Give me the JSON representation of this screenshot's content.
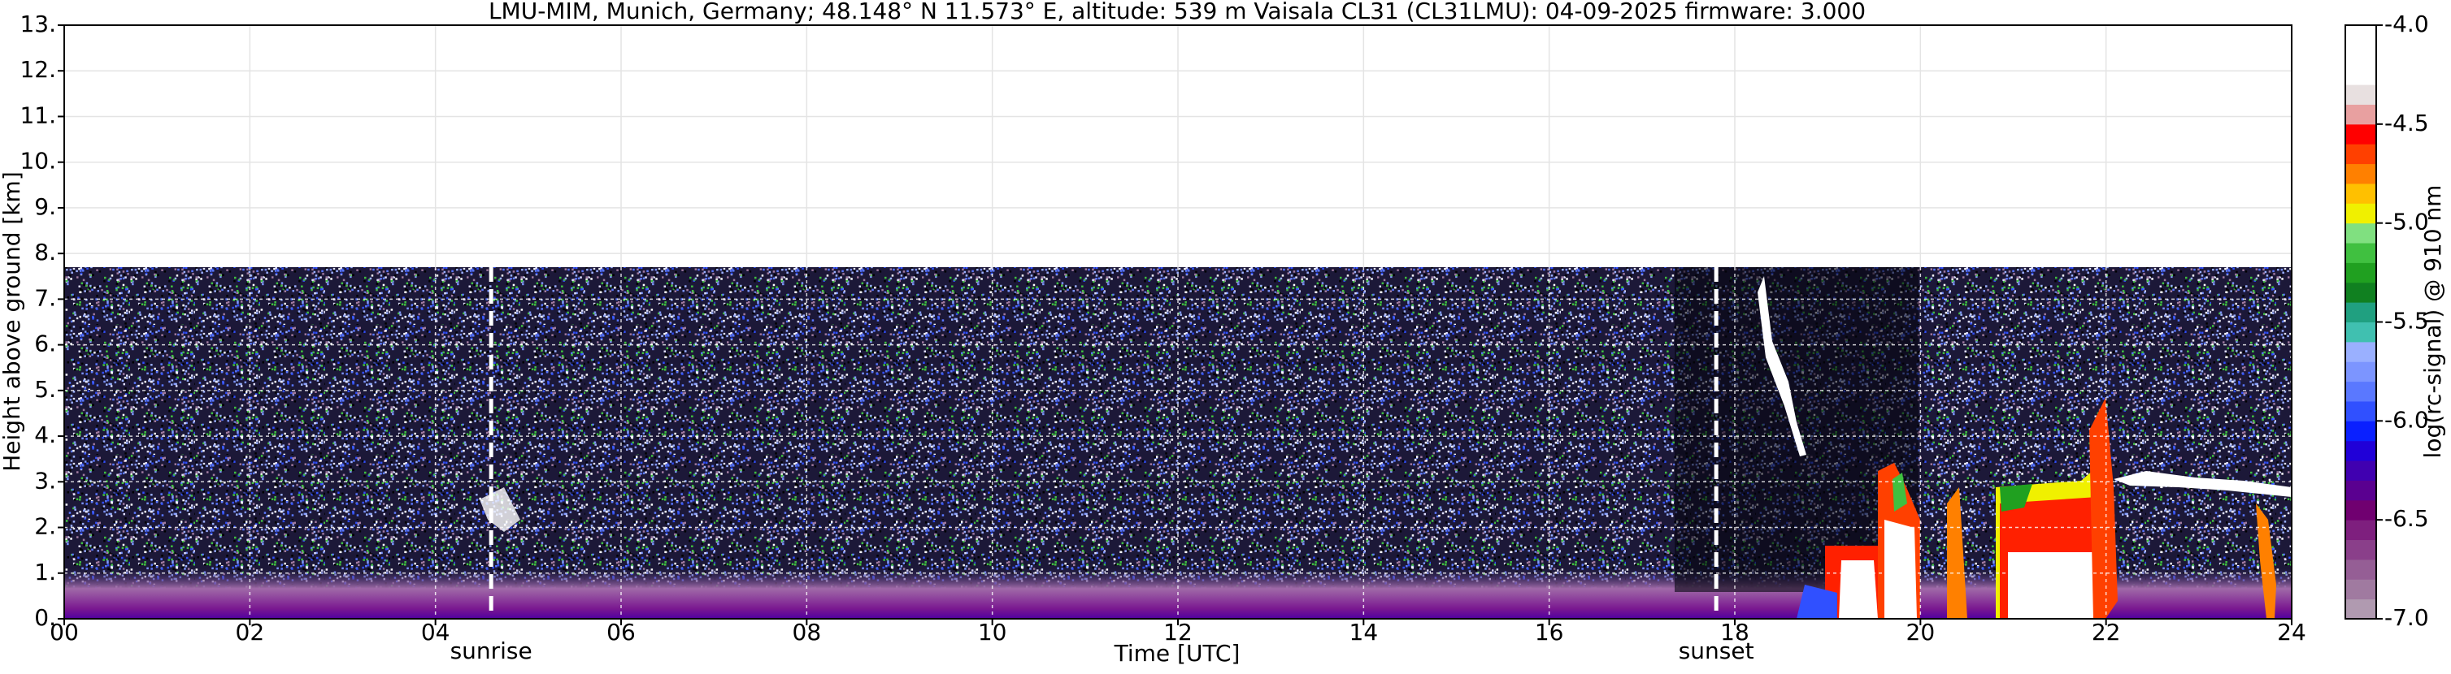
{
  "chart_data": {
    "type": "heatmap",
    "title": "LMU-MIM, Munich, Germany; 48.148° N 11.573° E, altitude: 539 m    Vaisala CL31 (CL31LMU): 04-09-2025    firmware: 3.000",
    "x_label": "Time [UTC]",
    "y_label": "Height above ground [km]",
    "xlim": [
      0,
      24
    ],
    "xticks": [
      {
        "value": 0,
        "label": "00"
      },
      {
        "value": 2,
        "label": "02"
      },
      {
        "value": 4,
        "label": "04"
      },
      {
        "value": 6,
        "label": "06"
      },
      {
        "value": 8,
        "label": "08"
      },
      10,
      12,
      14,
      16,
      18,
      20,
      22,
      24
    ],
    "ylim": [
      0,
      13
    ],
    "yticks": [
      {
        "value": 0,
        "label": "0."
      },
      {
        "value": 1,
        "label": "1."
      },
      {
        "value": 2,
        "label": "2."
      },
      {
        "value": 3,
        "label": "3."
      },
      {
        "value": 4,
        "label": "4."
      },
      {
        "value": 5,
        "label": "5."
      },
      {
        "value": 6,
        "label": "6."
      },
      {
        "value": 7,
        "label": "7."
      },
      {
        "value": 8,
        "label": "8."
      },
      {
        "value": 9,
        "label": "9."
      },
      {
        "value": 10,
        "label": "10."
      },
      {
        "value": 11,
        "label": "11."
      },
      {
        "value": 12,
        "label": "12."
      },
      {
        "value": 13,
        "label": "13."
      }
    ],
    "grid": true,
    "annotations": [
      {
        "label": "sunrise",
        "x": 4.6
      },
      {
        "label": "sunset",
        "x": 17.8
      }
    ],
    "colorbar": {
      "label": "log(rc-signal) @ 910 nm",
      "lim": [
        -7.0,
        -4.0
      ],
      "ticks": [
        {
          "value": -7,
          "label": "-7.0"
        },
        -6.5,
        {
          "value": -6,
          "label": "-6.0"
        },
        -5.5,
        {
          "value": -5,
          "label": "-5.0"
        },
        -4.5,
        {
          "value": -4,
          "label": "-4.0"
        }
      ],
      "colors": [
        "#b09ab0",
        "#a07aa0",
        "#955e95",
        "#8a3f8a",
        "#7e1f7e",
        "#700070",
        "#5a0090",
        "#4000b0",
        "#2000d8",
        "#0a20ff",
        "#3050ff",
        "#5a78ff",
        "#7c95ff",
        "#9ab0ff",
        "#40c0b0",
        "#20a080",
        "#108020",
        "#20a020",
        "#40c040",
        "#80e080",
        "#f0f000",
        "#ffc000",
        "#ff8000",
        "#ff4000",
        "#ff0000",
        "#e8a0a0",
        "#e8e0e0",
        "#ffffff",
        "#ffffff",
        "#ffffff"
      ]
    }
  }
}
